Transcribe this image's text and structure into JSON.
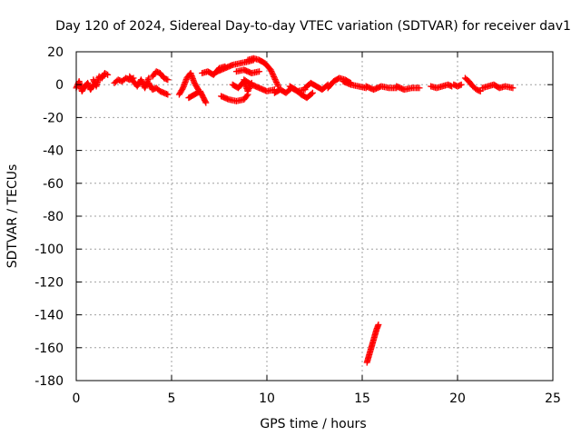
{
  "chart_data": {
    "type": "scatter",
    "title": "Day 120 of 2024, Sidereal Day-to-day VTEC variation (SDTVAR) for receiver dav1",
    "xlabel": "GPS time / hours",
    "ylabel": "SDTVAR / TECUs",
    "xlim": [
      0,
      25
    ],
    "ylim": [
      -180,
      20
    ],
    "xticks": [
      0,
      5,
      10,
      15,
      20,
      25
    ],
    "yticks": [
      20,
      0,
      -20,
      -40,
      -60,
      -80,
      -100,
      -120,
      -140,
      -160,
      -180
    ],
    "grid": true,
    "marker": "plus",
    "color": "#ff0000",
    "series": [
      {
        "name": "SDTVAR",
        "segments": [
          {
            "label": "arc-0.0-0.9",
            "points": [
              [
                0.0,
                -2
              ],
              [
                0.15,
                2
              ],
              [
                0.3,
                -4
              ],
              [
                0.45,
                -1
              ],
              [
                0.6,
                1
              ],
              [
                0.75,
                -3
              ],
              [
                0.9,
                0
              ]
            ]
          },
          {
            "label": "arc-0.9-1.7",
            "points": [
              [
                0.9,
                3
              ],
              [
                1.05,
                -1
              ],
              [
                1.2,
                5
              ],
              [
                1.35,
                4
              ],
              [
                1.5,
                7
              ],
              [
                1.65,
                6
              ]
            ]
          },
          {
            "label": "arc-2.0-3.0",
            "points": [
              [
                2.0,
                1
              ],
              [
                2.2,
                3
              ],
              [
                2.4,
                2
              ],
              [
                2.6,
                4
              ],
              [
                2.8,
                3
              ],
              [
                3.0,
                4
              ]
            ]
          },
          {
            "label": "arc-2.8-3.8",
            "points": [
              [
                2.8,
                5
              ],
              [
                3.0,
                2
              ],
              [
                3.2,
                -1
              ],
              [
                3.4,
                3
              ],
              [
                3.6,
                -2
              ],
              [
                3.8,
                4
              ]
            ]
          },
          {
            "label": "arc-3.8-4.9",
            "points": [
              [
                3.8,
                1
              ],
              [
                4.0,
                -3
              ],
              [
                4.2,
                -2
              ],
              [
                4.4,
                -4
              ],
              [
                4.6,
                -5
              ],
              [
                4.8,
                -6
              ]
            ]
          },
          {
            "label": "arc-4.0-4.8",
            "points": [
              [
                4.0,
                5
              ],
              [
                4.2,
                8
              ],
              [
                4.4,
                7
              ],
              [
                4.6,
                4
              ],
              [
                4.8,
                3
              ]
            ]
          },
          {
            "label": "arc-5.4-6.4",
            "points": [
              [
                5.4,
                -6
              ],
              [
                5.6,
                -2
              ],
              [
                5.8,
                4
              ],
              [
                6.0,
                7
              ],
              [
                6.2,
                1
              ],
              [
                6.4,
                -3
              ]
            ]
          },
          {
            "label": "arc-5.9-7.0",
            "points": [
              [
                5.9,
                -8
              ],
              [
                6.2,
                -6
              ],
              [
                6.5,
                -4
              ],
              [
                6.8,
                -11
              ]
            ]
          },
          {
            "label": "arc-6.6-7.9",
            "points": [
              [
                6.6,
                7
              ],
              [
                6.9,
                8
              ],
              [
                7.2,
                6
              ],
              [
                7.5,
                10
              ],
              [
                7.8,
                11
              ]
            ]
          },
          {
            "label": "arc-7.4-9.3",
            "points": [
              [
                7.4,
                8
              ],
              [
                7.8,
                10
              ],
              [
                8.2,
                12
              ],
              [
                8.6,
                13
              ],
              [
                9.0,
                14
              ],
              [
                9.3,
                15
              ]
            ]
          },
          {
            "label": "arc-7.6-9.0",
            "points": [
              [
                7.6,
                -7
              ],
              [
                8.0,
                -9
              ],
              [
                8.4,
                -10
              ],
              [
                8.8,
                -9
              ],
              [
                9.0,
                -6
              ]
            ]
          },
          {
            "label": "arc-8.2-9.2",
            "points": [
              [
                8.2,
                0
              ],
              [
                8.5,
                -2
              ],
              [
                8.8,
                2
              ],
              [
                9.0,
                -4
              ],
              [
                9.2,
                1
              ]
            ]
          },
          {
            "label": "arc-8.4-9.6",
            "points": [
              [
                8.4,
                8
              ],
              [
                8.8,
                9
              ],
              [
                9.2,
                7
              ],
              [
                9.6,
                8
              ]
            ]
          },
          {
            "label": "arc-9.0-10.6",
            "points": [
              [
                9.0,
                15
              ],
              [
                9.3,
                16
              ],
              [
                9.6,
                15
              ],
              [
                9.9,
                13
              ],
              [
                10.2,
                9
              ],
              [
                10.4,
                4
              ],
              [
                10.6,
                -1
              ]
            ]
          },
          {
            "label": "arc-8.8-10.4",
            "points": [
              [
                8.8,
                3
              ],
              [
                9.2,
                0
              ],
              [
                9.6,
                -2
              ],
              [
                10.0,
                -4
              ],
              [
                10.4,
                -3
              ]
            ]
          },
          {
            "label": "arc-10.4-12.0",
            "points": [
              [
                10.4,
                -5
              ],
              [
                10.7,
                -3
              ],
              [
                11.0,
                -5
              ],
              [
                11.3,
                -2
              ],
              [
                11.6,
                -4
              ],
              [
                12.0,
                -3
              ]
            ]
          },
          {
            "label": "arc-11.2-12.4",
            "points": [
              [
                11.2,
                -1
              ],
              [
                11.5,
                -3
              ],
              [
                11.8,
                -6
              ],
              [
                12.1,
                -8
              ],
              [
                12.4,
                -5
              ]
            ]
          },
          {
            "label": "arc-12.0-13.2",
            "points": [
              [
                12.0,
                -2
              ],
              [
                12.3,
                1
              ],
              [
                12.6,
                -1
              ],
              [
                12.9,
                -3
              ],
              [
                13.2,
                0
              ]
            ]
          },
          {
            "label": "arc-13.2-14.4",
            "points": [
              [
                13.2,
                -2
              ],
              [
                13.5,
                2
              ],
              [
                13.8,
                4
              ],
              [
                14.1,
                3
              ],
              [
                14.4,
                1
              ]
            ]
          },
          {
            "label": "arc-14.0-15.3",
            "points": [
              [
                14.0,
                2
              ],
              [
                14.4,
                0
              ],
              [
                14.8,
                -1
              ],
              [
                15.2,
                -2
              ]
            ]
          },
          {
            "label": "arc-15.2-16.8",
            "points": [
              [
                15.2,
                -1
              ],
              [
                15.6,
                -3
              ],
              [
                16.0,
                -1
              ],
              [
                16.4,
                -2
              ],
              [
                16.8,
                -2
              ]
            ]
          },
          {
            "label": "arc-16.8-18.2",
            "points": [
              [
                16.8,
                -1
              ],
              [
                17.2,
                -3
              ],
              [
                17.6,
                -2
              ],
              [
                18.0,
                -2
              ]
            ]
          },
          {
            "label": "arc-18.6-19.7",
            "points": [
              [
                18.6,
                -1
              ],
              [
                18.9,
                -2
              ],
              [
                19.2,
                -1
              ],
              [
                19.5,
                0
              ],
              [
                19.7,
                -1
              ]
            ]
          },
          {
            "label": "arc-19.8-20.2",
            "points": [
              [
                19.8,
                0
              ],
              [
                20.0,
                -1
              ],
              [
                20.2,
                0
              ]
            ]
          },
          {
            "label": "arc-20.4-21.3",
            "points": [
              [
                20.4,
                4
              ],
              [
                20.6,
                2
              ],
              [
                20.8,
                -1
              ],
              [
                21.0,
                -3
              ],
              [
                21.2,
                -4
              ]
            ]
          },
          {
            "label": "arc-21.3-22.9",
            "points": [
              [
                21.3,
                -2
              ],
              [
                21.6,
                -1
              ],
              [
                21.9,
                0
              ],
              [
                22.2,
                -2
              ],
              [
                22.5,
                -1
              ],
              [
                22.9,
                -2
              ]
            ]
          },
          {
            "label": "arc-15.2-15.9",
            "points": [
              [
                15.25,
                -169
              ],
              [
                15.35,
                -165
              ],
              [
                15.45,
                -161
              ],
              [
                15.55,
                -157
              ],
              [
                15.65,
                -153
              ],
              [
                15.75,
                -149
              ],
              [
                15.85,
                -146
              ]
            ]
          }
        ]
      }
    ]
  }
}
